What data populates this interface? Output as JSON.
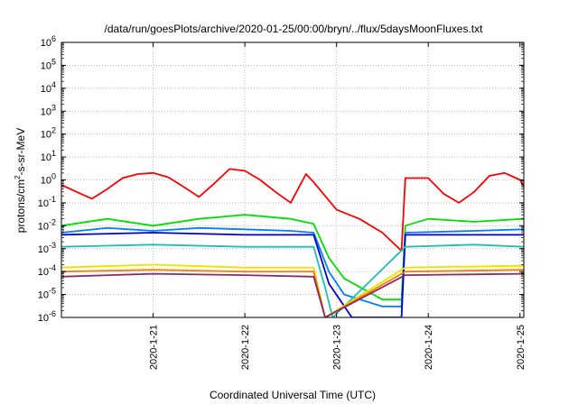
{
  "chart_data": {
    "type": "line",
    "title": "/data/run/goesPlots/archive/2020-01-25/00:00/bryn/../flux/5daysMoonFluxes.txt",
    "xlabel": "Coordinated Universal Time (UTC)",
    "ylabel_parts": {
      "pre": "protons/cm",
      "sup": "2",
      "post": "-s-sr-MeV"
    },
    "y_scale": "log",
    "ylim": [
      1e-06,
      1000000.0
    ],
    "y_ticks": [
      {
        "base": "10",
        "exp": "-6",
        "value": 1e-06
      },
      {
        "base": "10",
        "exp": "-5",
        "value": 1e-05
      },
      {
        "base": "10",
        "exp": "-4",
        "value": 0.0001
      },
      {
        "base": "10",
        "exp": "-3",
        "value": 0.001
      },
      {
        "base": "10",
        "exp": "-2",
        "value": 0.01
      },
      {
        "base": "10",
        "exp": "-1",
        "value": 0.1
      },
      {
        "base": "10",
        "exp": "0",
        "value": 1
      },
      {
        "base": "10",
        "exp": "1",
        "value": 10
      },
      {
        "base": "10",
        "exp": "2",
        "value": 100
      },
      {
        "base": "10",
        "exp": "3",
        "value": 1000
      },
      {
        "base": "10",
        "exp": "4",
        "value": 10000
      },
      {
        "base": "10",
        "exp": "5",
        "value": 100000
      },
      {
        "base": "10",
        "exp": "6",
        "value": 1000000
      }
    ],
    "xlim": [
      "2020-01-20 00:00",
      "2020-01-25 01:00"
    ],
    "x_ticks": [
      "2020-1-21",
      "2020-1-22",
      "2020-1-23",
      "2020-1-24",
      "2020-1-25"
    ],
    "grid": true,
    "series": [
      {
        "color": "#ff0000",
        "values": [
          [
            "2020-01-20 00:00",
            0.6
          ],
          [
            "2020-01-20 04:00",
            0.3
          ],
          [
            "2020-01-20 08:00",
            0.15
          ],
          [
            "2020-01-20 12:00",
            0.4
          ],
          [
            "2020-01-20 16:00",
            1.2
          ],
          [
            "2020-01-20 20:00",
            1.8
          ],
          [
            "2020-01-21 00:00",
            2.0
          ],
          [
            "2020-01-21 04:00",
            1.3
          ],
          [
            "2020-01-21 08:00",
            0.5
          ],
          [
            "2020-01-21 12:00",
            0.18
          ],
          [
            "2020-01-21 16:00",
            0.7
          ],
          [
            "2020-01-21 20:00",
            3.0
          ],
          [
            "2020-01-22 00:00",
            2.5
          ],
          [
            "2020-01-22 04:00",
            1.0
          ],
          [
            "2020-01-22 08:00",
            0.3
          ],
          [
            "2020-01-22 12:00",
            0.1
          ],
          [
            "2020-01-22 16:00",
            1.8
          ],
          [
            "2020-01-22 18:00",
            0.8
          ],
          [
            "2020-01-23 00:00",
            0.05
          ],
          [
            "2020-01-23 06:00",
            0.02
          ],
          [
            "2020-01-23 12:00",
            0.005
          ],
          [
            "2020-01-23 17:00",
            0.0008
          ],
          [
            "2020-01-23 18:00",
            1.2
          ],
          [
            "2020-01-24 00:00",
            1.2
          ],
          [
            "2020-01-24 04:00",
            0.25
          ],
          [
            "2020-01-24 08:00",
            0.1
          ],
          [
            "2020-01-24 12:00",
            0.3
          ],
          [
            "2020-01-24 16:00",
            1.5
          ],
          [
            "2020-01-24 20:00",
            2.0
          ],
          [
            "2020-01-25 00:00",
            1.0
          ],
          [
            "2020-01-25 01:00",
            0.5
          ]
        ]
      },
      {
        "color": "#00e000",
        "values": [
          [
            "2020-01-20 00:00",
            0.01
          ],
          [
            "2020-01-20 12:00",
            0.02
          ],
          [
            "2020-01-21 00:00",
            0.01
          ],
          [
            "2020-01-21 12:00",
            0.02
          ],
          [
            "2020-01-22 00:00",
            0.03
          ],
          [
            "2020-01-22 12:00",
            0.02
          ],
          [
            "2020-01-22 18:00",
            0.012
          ],
          [
            "2020-01-22 22:00",
            0.0004
          ],
          [
            "2020-01-23 02:00",
            5e-05
          ],
          [
            "2020-01-23 12:00",
            6e-06
          ],
          [
            "2020-01-23 17:00",
            6e-06
          ],
          [
            "2020-01-23 18:00",
            0.01
          ],
          [
            "2020-01-24 00:00",
            0.02
          ],
          [
            "2020-01-24 12:00",
            0.015
          ],
          [
            "2020-01-25 01:00",
            0.02
          ]
        ]
      },
      {
        "color": "#0080ff",
        "values": [
          [
            "2020-01-20 00:00",
            0.005
          ],
          [
            "2020-01-20 12:00",
            0.008
          ],
          [
            "2020-01-21 00:00",
            0.006
          ],
          [
            "2020-01-21 12:00",
            0.008
          ],
          [
            "2020-01-22 00:00",
            0.007
          ],
          [
            "2020-01-22 12:00",
            0.006
          ],
          [
            "2020-01-22 18:00",
            0.005
          ],
          [
            "2020-01-22 22:00",
            0.0001
          ],
          [
            "2020-01-23 02:00",
            1e-05
          ],
          [
            "2020-01-23 12:00",
            3e-06
          ],
          [
            "2020-01-23 17:00",
            3e-06
          ],
          [
            "2020-01-23 18:00",
            0.005
          ],
          [
            "2020-01-24 12:00",
            0.006
          ],
          [
            "2020-01-25 01:00",
            0.007
          ]
        ]
      },
      {
        "color": "#0000d0",
        "values": [
          [
            "2020-01-20 00:00",
            0.004
          ],
          [
            "2020-01-21 00:00",
            0.005
          ],
          [
            "2020-01-22 00:00",
            0.004
          ],
          [
            "2020-01-22 18:00",
            0.004
          ],
          [
            "2020-01-22 22:00",
            3e-05
          ],
          [
            "2020-01-23 04:00",
            1e-06
          ],
          [
            "2020-01-23 17:00",
            1e-06
          ],
          [
            "2020-01-23 18:00",
            0.004
          ],
          [
            "2020-01-24 12:00",
            0.004
          ],
          [
            "2020-01-25 01:00",
            0.004
          ]
        ]
      },
      {
        "color": "#20c0b0",
        "values": [
          [
            "2020-01-20 00:00",
            0.0012
          ],
          [
            "2020-01-21 00:00",
            0.0015
          ],
          [
            "2020-01-22 00:00",
            0.0012
          ],
          [
            "2020-01-22 18:00",
            0.0012
          ],
          [
            "2020-01-22 21:00",
            2e-05
          ],
          [
            "2020-01-22 23:00",
            1e-06
          ],
          [
            "2020-01-23 18:00",
            0.0012
          ],
          [
            "2020-01-24 12:00",
            0.0015
          ],
          [
            "2020-01-25 01:00",
            0.0012
          ]
        ]
      },
      {
        "color": "#f0e000",
        "values": [
          [
            "2020-01-20 00:00",
            0.00015
          ],
          [
            "2020-01-21 00:00",
            0.0002
          ],
          [
            "2020-01-22 00:00",
            0.00015
          ],
          [
            "2020-01-22 18:00",
            0.00015
          ],
          [
            "2020-01-22 21:00",
            1e-06
          ],
          [
            "2020-01-23 18:00",
            0.00015
          ],
          [
            "2020-01-25 01:00",
            0.00018
          ]
        ]
      },
      {
        "color": "#f08000",
        "values": [
          [
            "2020-01-20 00:00",
            0.0001
          ],
          [
            "2020-01-21 00:00",
            0.00012
          ],
          [
            "2020-01-22 00:00",
            0.0001
          ],
          [
            "2020-01-22 18:00",
            0.0001
          ],
          [
            "2020-01-22 21:00",
            1e-06
          ],
          [
            "2020-01-23 18:00",
            0.0001
          ],
          [
            "2020-01-25 01:00",
            0.00012
          ]
        ]
      },
      {
        "color": "#8b2a6b",
        "values": [
          [
            "2020-01-20 00:00",
            6e-05
          ],
          [
            "2020-01-21 00:00",
            8e-05
          ],
          [
            "2020-01-22 00:00",
            7e-05
          ],
          [
            "2020-01-22 18:00",
            6e-05
          ],
          [
            "2020-01-22 21:00",
            1e-06
          ],
          [
            "2020-01-23 18:00",
            7e-05
          ],
          [
            "2020-01-25 01:00",
            8e-05
          ]
        ]
      }
    ]
  }
}
